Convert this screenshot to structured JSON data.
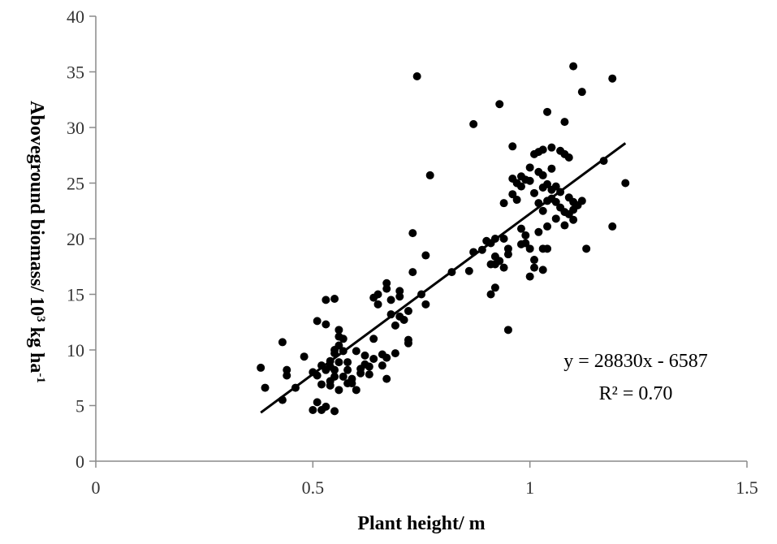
{
  "chart_data": {
    "type": "scatter",
    "xlabel": "Plant height/ m",
    "ylabel_main": "Aboveground biomass/ 10",
    "ylabel_sup1": "3",
    "ylabel_mid": " kg ha",
    "ylabel_sup2": "-1",
    "xlim": [
      0,
      1.5
    ],
    "ylim": [
      0,
      40
    ],
    "xticks": [
      0,
      0.5,
      1,
      1.5
    ],
    "xtick_labels": [
      "0",
      "0.5",
      "1",
      "1.5"
    ],
    "yticks": [
      0,
      5,
      10,
      15,
      20,
      25,
      30,
      35,
      40
    ],
    "ytick_labels": [
      "0",
      "5",
      "10",
      "15",
      "20",
      "25",
      "30",
      "35",
      "40"
    ],
    "equation": "y = 28830x - 6587",
    "r_squared": "R² = 0.70",
    "trendline": {
      "slope": 28.83,
      "intercept": -6.587,
      "x_start": 0.38,
      "x_end": 1.22
    },
    "points": [
      [
        0.38,
        8.4
      ],
      [
        0.39,
        6.6
      ],
      [
        0.43,
        10.7
      ],
      [
        0.43,
        5.5
      ],
      [
        0.44,
        8.2
      ],
      [
        0.44,
        7.7
      ],
      [
        0.46,
        6.6
      ],
      [
        0.48,
        9.4
      ],
      [
        0.5,
        8.0
      ],
      [
        0.5,
        4.6
      ],
      [
        0.51,
        12.6
      ],
      [
        0.51,
        7.7
      ],
      [
        0.51,
        5.3
      ],
      [
        0.52,
        8.6
      ],
      [
        0.52,
        6.9
      ],
      [
        0.52,
        4.6
      ],
      [
        0.53,
        14.5
      ],
      [
        0.53,
        12.3
      ],
      [
        0.53,
        8.2
      ],
      [
        0.53,
        4.9
      ],
      [
        0.54,
        9.0
      ],
      [
        0.54,
        8.5
      ],
      [
        0.54,
        7.2
      ],
      [
        0.54,
        6.8
      ],
      [
        0.55,
        14.6
      ],
      [
        0.55,
        10.0
      ],
      [
        0.55,
        9.7
      ],
      [
        0.55,
        8.2
      ],
      [
        0.55,
        7.6
      ],
      [
        0.55,
        4.5
      ],
      [
        0.56,
        11.8
      ],
      [
        0.56,
        11.2
      ],
      [
        0.56,
        10.4
      ],
      [
        0.56,
        8.9
      ],
      [
        0.56,
        6.4
      ],
      [
        0.57,
        11.0
      ],
      [
        0.57,
        9.9
      ],
      [
        0.57,
        7.6
      ],
      [
        0.58,
        8.9
      ],
      [
        0.58,
        8.2
      ],
      [
        0.58,
        7.0
      ],
      [
        0.59,
        7.4
      ],
      [
        0.59,
        7.0
      ],
      [
        0.6,
        9.9
      ],
      [
        0.6,
        6.4
      ],
      [
        0.61,
        8.3
      ],
      [
        0.61,
        7.9
      ],
      [
        0.62,
        9.5
      ],
      [
        0.62,
        8.7
      ],
      [
        0.63,
        8.5
      ],
      [
        0.63,
        7.8
      ],
      [
        0.64,
        14.7
      ],
      [
        0.64,
        11.0
      ],
      [
        0.64,
        9.2
      ],
      [
        0.65,
        15.0
      ],
      [
        0.65,
        14.1
      ],
      [
        0.66,
        9.6
      ],
      [
        0.66,
        8.6
      ],
      [
        0.67,
        16.0
      ],
      [
        0.67,
        15.5
      ],
      [
        0.67,
        9.3
      ],
      [
        0.67,
        7.4
      ],
      [
        0.68,
        14.5
      ],
      [
        0.68,
        13.2
      ],
      [
        0.69,
        12.2
      ],
      [
        0.69,
        9.7
      ],
      [
        0.7,
        15.3
      ],
      [
        0.7,
        14.8
      ],
      [
        0.7,
        13.0
      ],
      [
        0.71,
        12.7
      ],
      [
        0.72,
        13.5
      ],
      [
        0.72,
        10.9
      ],
      [
        0.72,
        10.6
      ],
      [
        0.73,
        20.5
      ],
      [
        0.73,
        17.0
      ],
      [
        0.74,
        34.6
      ],
      [
        0.75,
        15.0
      ],
      [
        0.76,
        18.5
      ],
      [
        0.76,
        14.1
      ],
      [
        0.77,
        25.7
      ],
      [
        0.82,
        17.0
      ],
      [
        0.86,
        17.1
      ],
      [
        0.87,
        30.3
      ],
      [
        0.87,
        18.8
      ],
      [
        0.89,
        19.0
      ],
      [
        0.9,
        19.8
      ],
      [
        0.91,
        19.6
      ],
      [
        0.91,
        17.7
      ],
      [
        0.91,
        15.0
      ],
      [
        0.92,
        20.0
      ],
      [
        0.92,
        18.4
      ],
      [
        0.92,
        17.7
      ],
      [
        0.92,
        15.6
      ],
      [
        0.93,
        32.1
      ],
      [
        0.93,
        18.0
      ],
      [
        0.94,
        23.2
      ],
      [
        0.94,
        20.0
      ],
      [
        0.94,
        17.4
      ],
      [
        0.95,
        11.8
      ],
      [
        0.95,
        19.1
      ],
      [
        0.95,
        18.6
      ],
      [
        0.96,
        28.3
      ],
      [
        0.96,
        25.4
      ],
      [
        0.96,
        24.0
      ],
      [
        0.97,
        25.0
      ],
      [
        0.97,
        23.5
      ],
      [
        0.98,
        25.6
      ],
      [
        0.98,
        24.7
      ],
      [
        0.98,
        20.9
      ],
      [
        0.98,
        19.5
      ],
      [
        0.99,
        25.3
      ],
      [
        0.99,
        20.3
      ],
      [
        0.99,
        19.6
      ],
      [
        1.0,
        26.4
      ],
      [
        1.0,
        25.2
      ],
      [
        1.0,
        19.1
      ],
      [
        1.0,
        16.6
      ],
      [
        1.01,
        27.6
      ],
      [
        1.01,
        24.1
      ],
      [
        1.01,
        18.1
      ],
      [
        1.01,
        17.4
      ],
      [
        1.02,
        27.8
      ],
      [
        1.02,
        26.0
      ],
      [
        1.02,
        23.2
      ],
      [
        1.02,
        20.6
      ],
      [
        1.03,
        28.0
      ],
      [
        1.03,
        25.7
      ],
      [
        1.03,
        24.6
      ],
      [
        1.03,
        22.5
      ],
      [
        1.03,
        19.1
      ],
      [
        1.03,
        17.2
      ],
      [
        1.04,
        31.4
      ],
      [
        1.04,
        24.9
      ],
      [
        1.04,
        23.4
      ],
      [
        1.04,
        21.1
      ],
      [
        1.04,
        19.1
      ],
      [
        1.05,
        28.2
      ],
      [
        1.05,
        26.3
      ],
      [
        1.05,
        24.4
      ],
      [
        1.05,
        23.6
      ],
      [
        1.06,
        24.7
      ],
      [
        1.06,
        23.3
      ],
      [
        1.06,
        21.8
      ],
      [
        1.07,
        27.9
      ],
      [
        1.07,
        24.2
      ],
      [
        1.07,
        22.8
      ],
      [
        1.08,
        30.5
      ],
      [
        1.08,
        27.6
      ],
      [
        1.08,
        22.4
      ],
      [
        1.08,
        21.2
      ],
      [
        1.09,
        27.3
      ],
      [
        1.09,
        23.7
      ],
      [
        1.09,
        22.2
      ],
      [
        1.1,
        35.5
      ],
      [
        1.1,
        23.3
      ],
      [
        1.1,
        22.6
      ],
      [
        1.1,
        21.7
      ],
      [
        1.11,
        23.0
      ],
      [
        1.12,
        33.2
      ],
      [
        1.12,
        23.4
      ],
      [
        1.13,
        19.1
      ],
      [
        1.17,
        27.0
      ],
      [
        1.19,
        34.4
      ],
      [
        1.19,
        21.1
      ],
      [
        1.22,
        25.0
      ]
    ]
  }
}
